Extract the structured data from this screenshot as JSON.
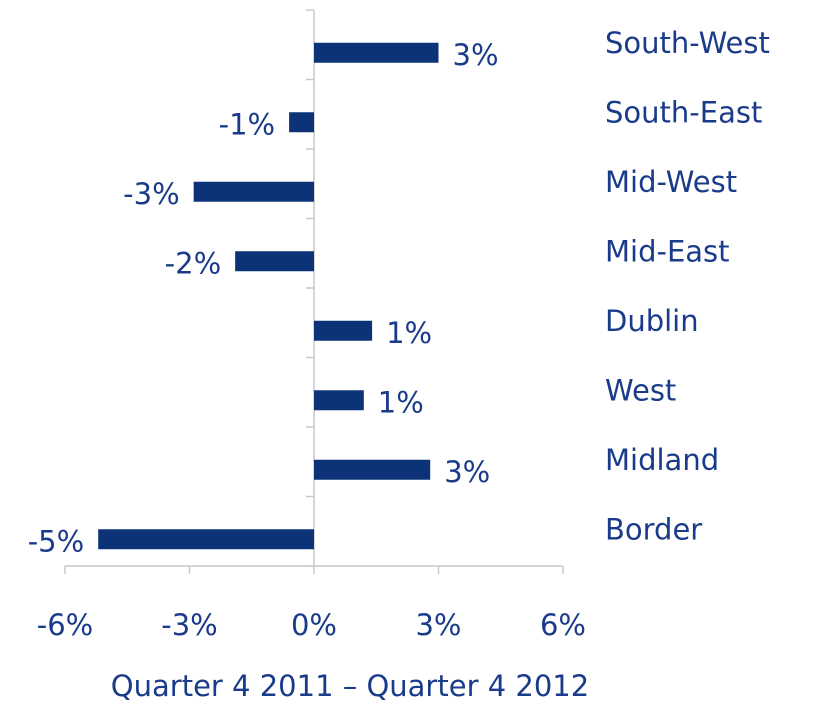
{
  "chart_data": {
    "type": "bar",
    "orientation": "horizontal",
    "x_label": "Quarter 4 2011 – Quarter 4 2012",
    "categories": [
      "South-West",
      "South-East",
      "Mid-West",
      "Mid-East",
      "Dublin",
      "West",
      "Midland",
      "Border"
    ],
    "values": [
      3.0,
      -0.6,
      -2.9,
      -1.9,
      1.4,
      1.2,
      2.8,
      -5.2
    ],
    "value_labels": [
      "3%",
      "-1%",
      "-3%",
      "-2%",
      "1%",
      "1%",
      "3%",
      "-5%"
    ],
    "color": "#0c3378",
    "xlim": [
      -6,
      6
    ],
    "xticks": [
      {
        "value": -6,
        "label": "-6%"
      },
      {
        "value": -3,
        "label": "-3%"
      },
      {
        "value": 0,
        "label": "0%"
      },
      {
        "value": 3,
        "label": "3%"
      },
      {
        "value": 6,
        "label": "6%"
      }
    ]
  }
}
